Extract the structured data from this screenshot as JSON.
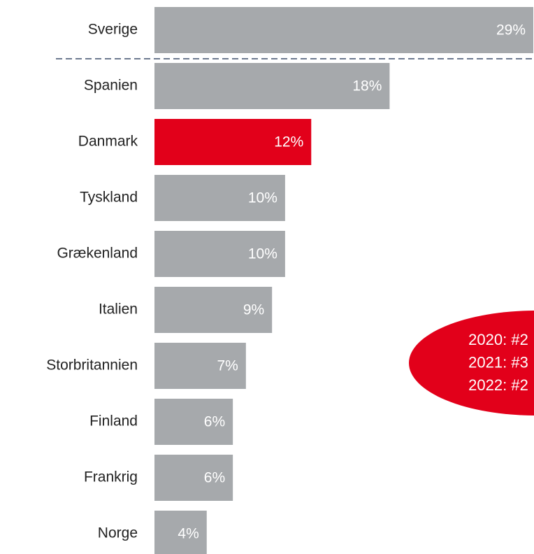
{
  "chart_data": {
    "type": "bar",
    "orientation": "horizontal",
    "categories": [
      "Sverige",
      "Spanien",
      "Danmark",
      "Tyskland",
      "Grækenland",
      "Italien",
      "Storbritannien",
      "Finland",
      "Frankrig",
      "Norge"
    ],
    "values": [
      29,
      18,
      12,
      10,
      10,
      9,
      7,
      6,
      6,
      4
    ],
    "value_labels": [
      "29%",
      "18%",
      "12%",
      "10%",
      "10%",
      "9%",
      "7%",
      "6%",
      "6%",
      "4%"
    ],
    "colors": [
      "#a6a9ac",
      "#a6a9ac",
      "#e2001a",
      "#a6a9ac",
      "#a6a9ac",
      "#a6a9ac",
      "#a6a9ac",
      "#a6a9ac",
      "#a6a9ac",
      "#a6a9ac"
    ],
    "annotation": [
      "2020: #2",
      "2021: #3",
      "2022: #2"
    ],
    "annotation_color": "#e2001a",
    "separator_color": "#3d4f6b"
  }
}
